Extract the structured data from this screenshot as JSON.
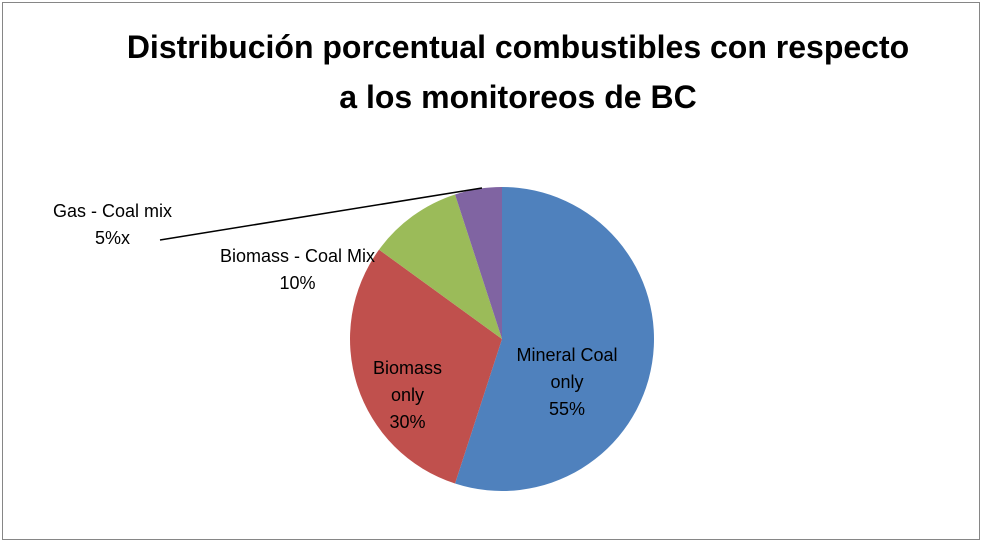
{
  "chart_data": {
    "type": "pie",
    "title": "Distribución porcentual combustibles con respecto a los monitoreos de BC",
    "categories": [
      "Mineral Coal only",
      "Biomass only",
      "Biomass - Coal Mix",
      "Gas - Coal mix"
    ],
    "values": [
      55,
      30,
      10,
      5
    ],
    "value_labels": [
      "55%",
      "30%",
      "10%",
      "5%x"
    ],
    "colors": [
      "#4f81bd",
      "#c0504d",
      "#9bbb59",
      "#8064a2"
    ]
  }
}
